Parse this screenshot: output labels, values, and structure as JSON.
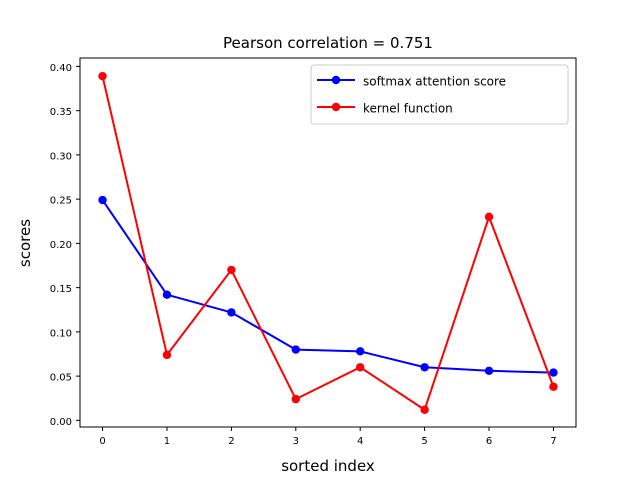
{
  "chart_data": {
    "type": "line",
    "title": "Pearson correlation =  0.751",
    "xlabel": "sorted index",
    "ylabel": "scores",
    "x": [
      0,
      1,
      2,
      3,
      4,
      5,
      6,
      7
    ],
    "xlim": [
      -0.35,
      7.35
    ],
    "ylim": [
      -0.0075,
      0.4095
    ],
    "xticks": [
      0,
      1,
      2,
      3,
      4,
      5,
      6,
      7
    ],
    "yticks": [
      0.0,
      0.05,
      0.1,
      0.15,
      0.2,
      0.25,
      0.3,
      0.35,
      0.4
    ],
    "ytick_labels": [
      "0.00",
      "0.05",
      "0.10",
      "0.15",
      "0.20",
      "0.25",
      "0.30",
      "0.35",
      "0.40"
    ],
    "legend_position": "top-right",
    "series": [
      {
        "name": "softmax attention score",
        "color": "#0000ff",
        "values": [
          0.249,
          0.142,
          0.122,
          0.08,
          0.078,
          0.06,
          0.056,
          0.054
        ]
      },
      {
        "name": "kernel function",
        "color": "#ff0000",
        "values": [
          0.389,
          0.074,
          0.17,
          0.024,
          0.06,
          0.012,
          0.23,
          0.038
        ]
      }
    ]
  }
}
